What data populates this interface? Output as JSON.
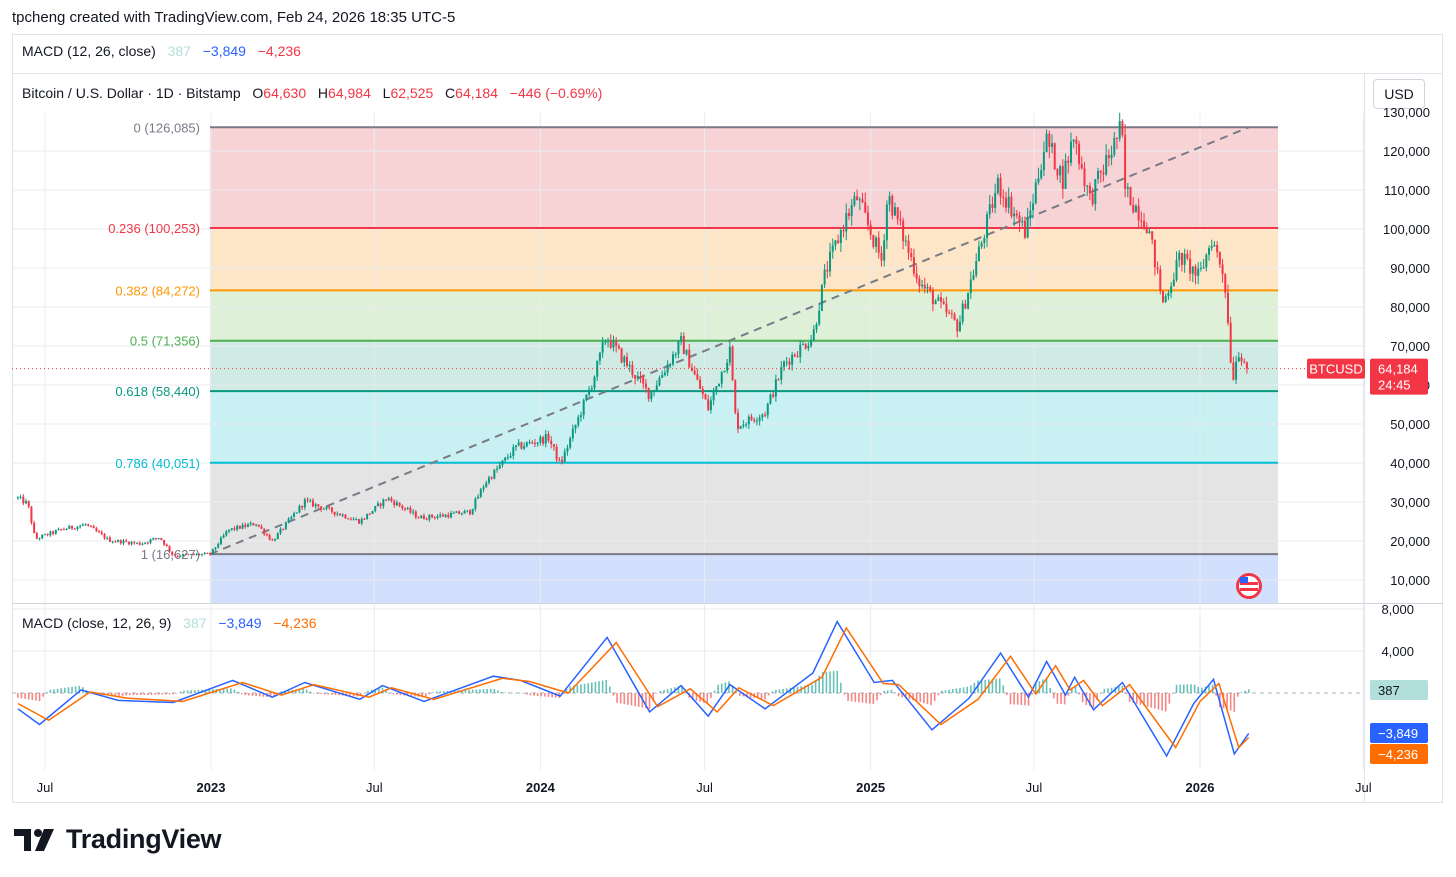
{
  "header": {
    "title": "tpcheng created with TradingView.com, Feb 24, 2026 18:35 UTC-5"
  },
  "macd_top": {
    "label": "MACD (12, 26, close)",
    "v1": "387",
    "v2": "−3,849",
    "v3": "−4,236"
  },
  "symbol": {
    "name": "Bitcoin / U.S. Dollar · 1D · Bitstamp",
    "o_label": "O",
    "o": "64,630",
    "h_label": "H",
    "h": "64,984",
    "l_label": "L",
    "l": "62,525",
    "c_label": "C",
    "c": "64,184",
    "chg": "−446 (−0.69%)"
  },
  "currency_button": "USD",
  "price_tag": {
    "symbol": "BTCUSD",
    "price": "64,184",
    "countdown": "24:45"
  },
  "macd_pane": {
    "label": "MACD (close, 12, 26, 9)",
    "hist": "387",
    "macd": "−3,849",
    "signal": "−4,236"
  },
  "macd_price_labels": [
    "387",
    "−3,849",
    "−4,236"
  ],
  "logo": {
    "text": "TradingView"
  },
  "colors": {
    "up": "#089981",
    "down": "#f23645",
    "macd": "#2962ff",
    "signal": "#ff6d00",
    "text_red": "#f23645",
    "macd_hist_label": "#b2dfdb"
  },
  "chart_data": [
    {
      "type": "candlestick",
      "title": "Bitcoin / U.S. Dollar · 1D · Bitstamp",
      "y_axis": {
        "ticks": [
          "10,000",
          "20,000",
          "30,000",
          "40,000",
          "50,000",
          "60,000",
          "70,000",
          "80,000",
          "90,000",
          "100,000",
          "110,000",
          "120,000",
          "130,000"
        ],
        "values": [
          10000,
          20000,
          30000,
          40000,
          50000,
          60000,
          70000,
          80000,
          90000,
          100000,
          110000,
          120000,
          130000
        ],
        "ylim": [
          0,
          130000
        ]
      },
      "x_axis": {
        "ticks": [
          "Jul",
          "2023",
          "Jul",
          "2024",
          "Jul",
          "2025",
          "Jul",
          "2026",
          "Jul"
        ],
        "dates": [
          "2022-07-01",
          "2023-01-01",
          "2023-07-01",
          "2024-01-01",
          "2024-07-01",
          "2025-01-01",
          "2025-07-01",
          "2026-01-01",
          "2026-07-01"
        ]
      },
      "last_price": 64184,
      "fibonacci": [
        {
          "level": "0",
          "label": "0 (126,085)",
          "price": 126085,
          "color": "#787b86",
          "fill": "#f8d3d6"
        },
        {
          "level": "0.236",
          "label": "0.236 (100,253)",
          "price": 100253,
          "color": "#f23645",
          "fill": "#fde5c8"
        },
        {
          "level": "0.382",
          "label": "0.382 (84,272)",
          "price": 84272,
          "color": "#ff9800",
          "fill": "#dff0d8"
        },
        {
          "level": "0.5",
          "label": "0.5 (71,356)",
          "price": 71356,
          "color": "#4caf50",
          "fill": "#d0ebe3"
        },
        {
          "level": "0.618",
          "label": "0.618 (58,440)",
          "price": 58440,
          "color": "#089981",
          "fill": "#c9f0f2"
        },
        {
          "level": "0.786",
          "label": "0.786 (40,051)",
          "price": 40051,
          "color": "#00bcd4",
          "fill": "#e4e4e4"
        },
        {
          "level": "1",
          "label": "1 (16,627)",
          "price": 16627,
          "color": "#787b86",
          "fill": "#d3e0fd"
        }
      ],
      "trend_line": {
        "start": {
          "date": "2022-12-31",
          "price": 16627
        },
        "end": {
          "date": "2026-02-24",
          "price": 126085
        }
      },
      "price_path": [
        {
          "date": "2022-06-01",
          "price": 31000
        },
        {
          "date": "2022-06-12",
          "price": 29500
        },
        {
          "date": "2022-06-20",
          "price": 20500
        },
        {
          "date": "2022-07-20",
          "price": 23000
        },
        {
          "date": "2022-08-15",
          "price": 24200
        },
        {
          "date": "2022-09-10",
          "price": 20200
        },
        {
          "date": "2022-10-15",
          "price": 19300
        },
        {
          "date": "2022-11-05",
          "price": 21000
        },
        {
          "date": "2022-11-20",
          "price": 16300
        },
        {
          "date": "2022-12-31",
          "price": 16627
        },
        {
          "date": "2023-01-20",
          "price": 22800
        },
        {
          "date": "2023-02-20",
          "price": 24500
        },
        {
          "date": "2023-03-10",
          "price": 20000
        },
        {
          "date": "2023-04-15",
          "price": 30200
        },
        {
          "date": "2023-06-15",
          "price": 25000
        },
        {
          "date": "2023-07-15",
          "price": 31000
        },
        {
          "date": "2023-08-20",
          "price": 26000
        },
        {
          "date": "2023-09-15",
          "price": 26500
        },
        {
          "date": "2023-10-15",
          "price": 27500
        },
        {
          "date": "2023-11-01",
          "price": 35000
        },
        {
          "date": "2023-12-05",
          "price": 44000
        },
        {
          "date": "2024-01-10",
          "price": 46500
        },
        {
          "date": "2024-01-23",
          "price": 39500
        },
        {
          "date": "2024-02-28",
          "price": 61000
        },
        {
          "date": "2024-03-14",
          "price": 72500
        },
        {
          "date": "2024-05-01",
          "price": 57500
        },
        {
          "date": "2024-06-05",
          "price": 71000
        },
        {
          "date": "2024-07-05",
          "price": 54000
        },
        {
          "date": "2024-07-29",
          "price": 69000
        },
        {
          "date": "2024-08-05",
          "price": 49500
        },
        {
          "date": "2024-09-06",
          "price": 53000
        },
        {
          "date": "2024-09-27",
          "price": 65500
        },
        {
          "date": "2024-10-29",
          "price": 72500
        },
        {
          "date": "2024-11-12",
          "price": 89000
        },
        {
          "date": "2024-12-05",
          "price": 103000
        },
        {
          "date": "2024-12-17",
          "price": 108000
        },
        {
          "date": "2025-01-13",
          "price": 92000
        },
        {
          "date": "2025-01-20",
          "price": 109000
        },
        {
          "date": "2025-02-25",
          "price": 86000
        },
        {
          "date": "2025-04-08",
          "price": 75000
        },
        {
          "date": "2025-05-22",
          "price": 111500
        },
        {
          "date": "2025-06-22",
          "price": 99000
        },
        {
          "date": "2025-07-14",
          "price": 123000
        },
        {
          "date": "2025-08-02",
          "price": 113000
        },
        {
          "date": "2025-08-14",
          "price": 124000
        },
        {
          "date": "2025-09-01",
          "price": 107500
        },
        {
          "date": "2025-10-06",
          "price": 126085
        },
        {
          "date": "2025-10-10",
          "price": 110000
        },
        {
          "date": "2025-11-04",
          "price": 101000
        },
        {
          "date": "2025-11-21",
          "price": 81000
        },
        {
          "date": "2025-12-10",
          "price": 93000
        },
        {
          "date": "2025-12-31",
          "price": 87500
        },
        {
          "date": "2026-01-14",
          "price": 97500
        },
        {
          "date": "2026-01-28",
          "price": 88000
        },
        {
          "date": "2026-02-06",
          "price": 61000
        },
        {
          "date": "2026-02-12",
          "price": 69000
        },
        {
          "date": "2026-02-24",
          "price": 64184
        }
      ]
    },
    {
      "type": "line",
      "title": "MACD (close, 12, 26, 9)",
      "y_axis": {
        "ticks": [
          "8,000",
          "4,000"
        ],
        "values": [
          8000,
          4000
        ],
        "ylim": [
          -7000,
          8000
        ]
      },
      "series": [
        {
          "name": "MACD",
          "color": "#2962ff",
          "points": [
            {
              "date": "2022-06-01",
              "value": -1500
            },
            {
              "date": "2022-06-25",
              "value": -3000
            },
            {
              "date": "2022-08-10",
              "value": 300
            },
            {
              "date": "2022-09-20",
              "value": -700
            },
            {
              "date": "2022-11-20",
              "value": -900
            },
            {
              "date": "2023-01-25",
              "value": 1200
            },
            {
              "date": "2023-03-10",
              "value": -400
            },
            {
              "date": "2023-04-15",
              "value": 1000
            },
            {
              "date": "2023-06-15",
              "value": -600
            },
            {
              "date": "2023-07-10",
              "value": 700
            },
            {
              "date": "2023-08-25",
              "value": -800
            },
            {
              "date": "2023-11-10",
              "value": 1600
            },
            {
              "date": "2023-12-10",
              "value": 1200
            },
            {
              "date": "2024-01-23",
              "value": -300
            },
            {
              "date": "2024-03-15",
              "value": 5300
            },
            {
              "date": "2024-05-01",
              "value": -1800
            },
            {
              "date": "2024-06-05",
              "value": 700
            },
            {
              "date": "2024-07-05",
              "value": -2200
            },
            {
              "date": "2024-07-29",
              "value": 800
            },
            {
              "date": "2024-09-06",
              "value": -1500
            },
            {
              "date": "2024-10-29",
              "value": 1900
            },
            {
              "date": "2024-11-25",
              "value": 6800
            },
            {
              "date": "2025-01-05",
              "value": 1000
            },
            {
              "date": "2025-01-25",
              "value": 1200
            },
            {
              "date": "2025-03-10",
              "value": -3500
            },
            {
              "date": "2025-04-20",
              "value": -500
            },
            {
              "date": "2025-05-25",
              "value": 3800
            },
            {
              "date": "2025-06-25",
              "value": -400
            },
            {
              "date": "2025-07-15",
              "value": 3000
            },
            {
              "date": "2025-08-05",
              "value": -200
            },
            {
              "date": "2025-08-15",
              "value": 1500
            },
            {
              "date": "2025-09-05",
              "value": -1600
            },
            {
              "date": "2025-10-07",
              "value": 1000
            },
            {
              "date": "2025-11-25",
              "value": -6000
            },
            {
              "date": "2025-12-25",
              "value": -1000
            },
            {
              "date": "2026-01-16",
              "value": 1300
            },
            {
              "date": "2026-02-08",
              "value": -5800
            },
            {
              "date": "2026-02-24",
              "value": -3849
            }
          ]
        },
        {
          "name": "Signal",
          "color": "#ff6d00",
          "points": [
            {
              "date": "2022-06-01",
              "value": -1000
            },
            {
              "date": "2022-07-05",
              "value": -2600
            },
            {
              "date": "2022-08-20",
              "value": 100
            },
            {
              "date": "2022-10-01",
              "value": -500
            },
            {
              "date": "2022-12-01",
              "value": -800
            },
            {
              "date": "2023-02-05",
              "value": 1000
            },
            {
              "date": "2023-03-20",
              "value": -200
            },
            {
              "date": "2023-04-25",
              "value": 800
            },
            {
              "date": "2023-06-25",
              "value": -400
            },
            {
              "date": "2023-07-20",
              "value": 500
            },
            {
              "date": "2023-09-05",
              "value": -600
            },
            {
              "date": "2023-11-20",
              "value": 1400
            },
            {
              "date": "2023-12-20",
              "value": 1100
            },
            {
              "date": "2024-02-01",
              "value": 0
            },
            {
              "date": "2024-03-25",
              "value": 4800
            },
            {
              "date": "2024-05-10",
              "value": -1300
            },
            {
              "date": "2024-06-15",
              "value": 400
            },
            {
              "date": "2024-07-15",
              "value": -1800
            },
            {
              "date": "2024-08-08",
              "value": 500
            },
            {
              "date": "2024-09-15",
              "value": -1200
            },
            {
              "date": "2024-11-08",
              "value": 1500
            },
            {
              "date": "2024-12-05",
              "value": 6200
            },
            {
              "date": "2025-01-15",
              "value": 900
            },
            {
              "date": "2025-02-01",
              "value": 800
            },
            {
              "date": "2025-03-20",
              "value": -3000
            },
            {
              "date": "2025-04-30",
              "value": -600
            },
            {
              "date": "2025-06-05",
              "value": 3500
            },
            {
              "date": "2025-07-03",
              "value": -100
            },
            {
              "date": "2025-07-25",
              "value": 2600
            },
            {
              "date": "2025-08-10",
              "value": 300
            },
            {
              "date": "2025-08-25",
              "value": 1200
            },
            {
              "date": "2025-09-15",
              "value": -1200
            },
            {
              "date": "2025-10-15",
              "value": 800
            },
            {
              "date": "2025-12-05",
              "value": -5200
            },
            {
              "date": "2026-01-01",
              "value": -800
            },
            {
              "date": "2026-01-22",
              "value": 900
            },
            {
              "date": "2026-02-13",
              "value": -5200
            },
            {
              "date": "2026-02-24",
              "value": -4236
            }
          ]
        }
      ],
      "histogram_last": 387
    }
  ]
}
